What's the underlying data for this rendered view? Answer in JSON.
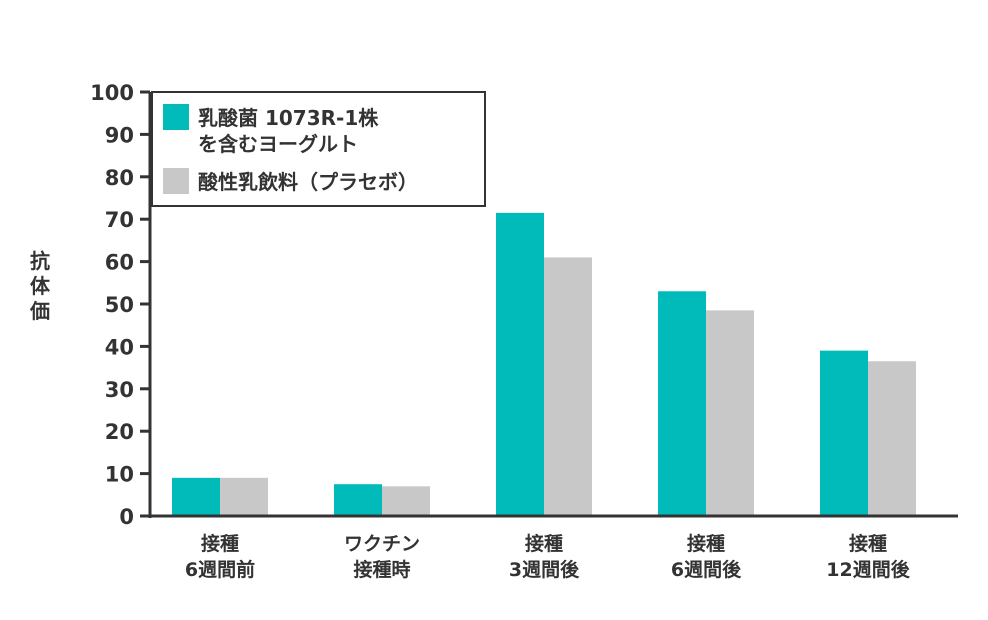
{
  "chart_data": {
    "type": "bar",
    "ylabel": "抗体価",
    "ylim": [
      0,
      100
    ],
    "yticks": [
      0,
      10,
      20,
      30,
      40,
      50,
      60,
      70,
      80,
      90,
      100
    ],
    "categories": [
      [
        "接種",
        "6週間前"
      ],
      [
        "ワクチン",
        "接種時"
      ],
      [
        "接種",
        "3週間後"
      ],
      [
        "接種",
        "6週間後"
      ],
      [
        "接種",
        "12週間後"
      ]
    ],
    "series": [
      {
        "name": "乳酸菌 1073R-1株 を含むヨーグルト",
        "legend_lines": [
          "乳酸菌 1073R-1株",
          "を含むヨーグルト"
        ],
        "color": "#00bbb9",
        "values": [
          9,
          7.5,
          71.5,
          53,
          39
        ]
      },
      {
        "name": "酸性乳飲料（プラセボ）",
        "legend_lines": [
          "酸性乳飲料（プラセボ）"
        ],
        "color": "#c8c8c8",
        "values": [
          9,
          7,
          61,
          48.5,
          36.5
        ]
      }
    ],
    "legend_position": "top-left",
    "grid": false
  }
}
